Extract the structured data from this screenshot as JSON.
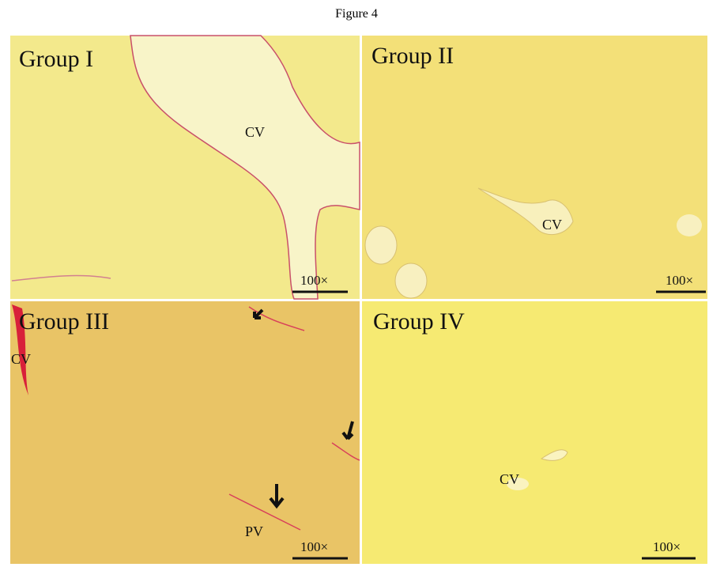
{
  "figure": {
    "title": "Figure 4",
    "panels": [
      {
        "label": "Group I",
        "annotations": [
          "CV"
        ],
        "scale": "100×"
      },
      {
        "label": "Group II",
        "annotations": [
          "CV"
        ],
        "scale": "100×"
      },
      {
        "label": "Group III",
        "annotations": [
          "CV",
          "PV"
        ],
        "scale": "100×"
      },
      {
        "label": "Group IV",
        "annotations": [
          "CV"
        ],
        "scale": "100×"
      }
    ]
  }
}
